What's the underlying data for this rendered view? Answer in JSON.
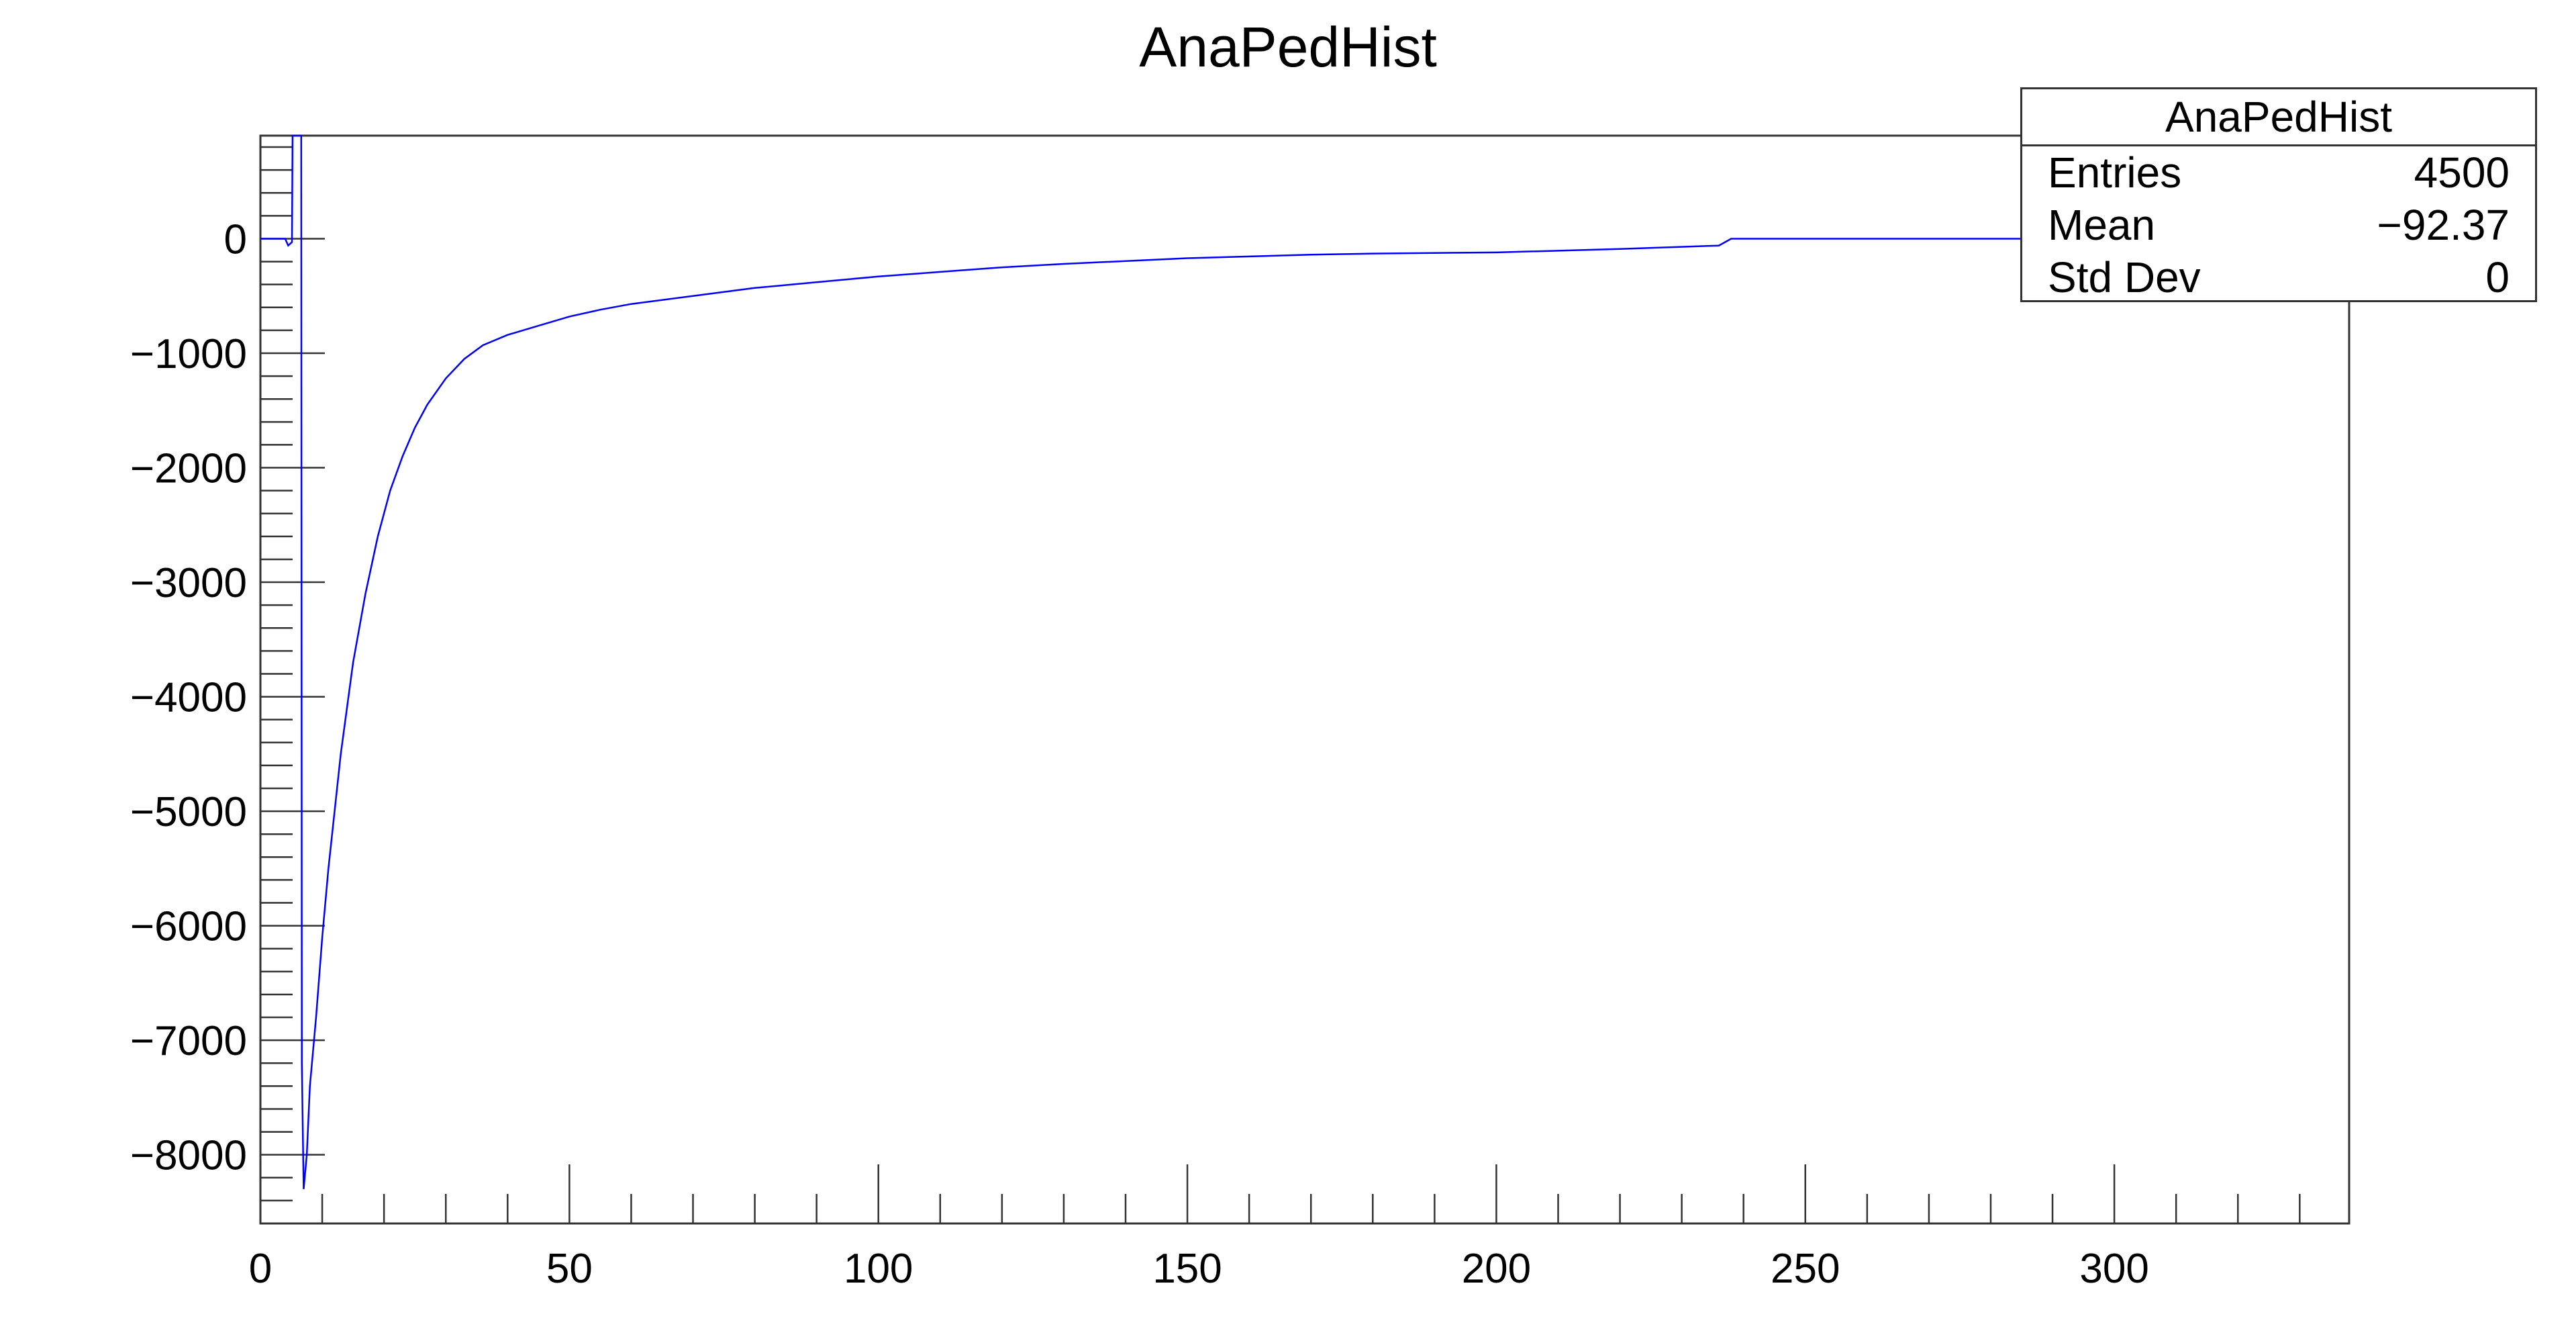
{
  "chart_data": {
    "type": "line",
    "title": "AnaPedHist",
    "xlabel": "",
    "ylabel": "",
    "xlim": [
      0,
      338
    ],
    "ylim": [
      -8600,
      900
    ],
    "grid": false,
    "line_color": "#0000ff",
    "x_ticks": [
      0,
      50,
      100,
      150,
      200,
      250,
      300
    ],
    "y_ticks": [
      0,
      -1000,
      -2000,
      -3000,
      -4000,
      -5000,
      -6000,
      -7000,
      -8000
    ],
    "x_tick_labels": [
      "0",
      "50",
      "100",
      "150",
      "200",
      "250",
      "300"
    ],
    "y_tick_labels": [
      "0",
      "−1000",
      "−2000",
      "−3000",
      "−4000",
      "−5000",
      "−6000",
      "−7000",
      "−8000"
    ],
    "series": [
      {
        "x": [
          0,
          4,
          4.5,
          5.1,
          5.2,
          6.6,
          6.7,
          7,
          7.5,
          8,
          9,
          10,
          11,
          12,
          13,
          14,
          15,
          17,
          19,
          21,
          23,
          25,
          27,
          30,
          33,
          36,
          40,
          45,
          50,
          55,
          60,
          70,
          80,
          90,
          100,
          110,
          120,
          130,
          150,
          170,
          180,
          200,
          220,
          236,
          238,
          338
        ],
        "y": [
          0,
          0,
          -60,
          -30,
          900,
          900,
          -7200,
          -8300,
          -8000,
          -7400,
          -6800,
          -6100,
          -5500,
          -5000,
          -4500,
          -4100,
          -3700,
          -3100,
          -2600,
          -2200,
          -1900,
          -1650,
          -1450,
          -1220,
          -1050,
          -930,
          -840,
          -760,
          -680,
          -620,
          -570,
          -500,
          -430,
          -380,
          -330,
          -290,
          -250,
          -220,
          -170,
          -140,
          -130,
          -120,
          -90,
          -60,
          0,
          0
        ]
      }
    ]
  },
  "stats": {
    "title": "AnaPedHist",
    "rows": [
      {
        "label": "Entries",
        "value": "4500"
      },
      {
        "label": "Mean",
        "value": "−92.37"
      },
      {
        "label": "Std Dev",
        "value": "0"
      }
    ]
  }
}
